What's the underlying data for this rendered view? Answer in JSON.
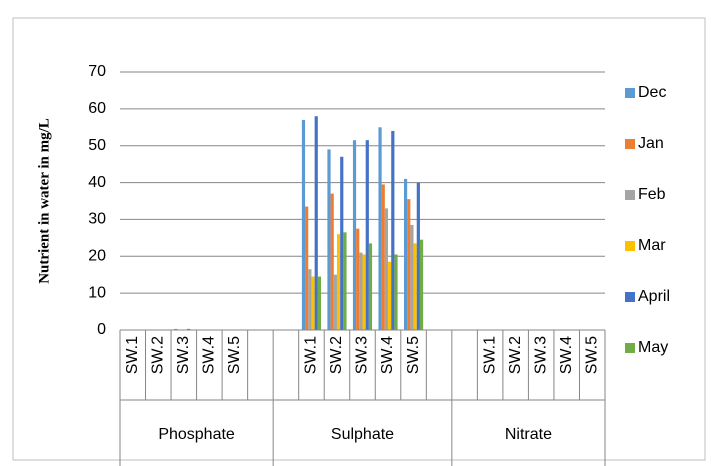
{
  "chart_data": {
    "type": "bar",
    "y_label": "Nutrient in water in mg/L",
    "groups": [
      "Phosphate",
      "Sulphate",
      "Nitrate"
    ],
    "categories": [
      "SW.1",
      "SW.2",
      "SW.3",
      "SW.4",
      "SW.5",
      null,
      null,
      "SW.1",
      "SW.2",
      "SW.3",
      "SW.4",
      "SW.5",
      null,
      null,
      "SW.1",
      "SW.2",
      "SW.3",
      "SW.4",
      "SW.5"
    ],
    "series": [
      {
        "name": "Dec",
        "color": "#5b9bd5",
        "values": [
          0,
          0,
          0.3,
          0,
          0,
          null,
          null,
          57,
          49,
          51.5,
          55,
          41,
          null,
          null,
          0,
          0,
          0,
          0,
          0
        ]
      },
      {
        "name": "Jan",
        "color": "#ed7d31",
        "values": [
          0,
          0,
          0,
          0,
          0,
          null,
          null,
          33.5,
          37,
          27.5,
          39.5,
          35.5,
          null,
          null,
          0,
          0,
          0,
          0,
          0
        ]
      },
      {
        "name": "Feb",
        "color": "#a5a5a5",
        "values": [
          0,
          0,
          0,
          0,
          0,
          null,
          null,
          16.5,
          15,
          21,
          33,
          28.5,
          null,
          null,
          0,
          0,
          0,
          0,
          0
        ]
      },
      {
        "name": "Mar",
        "color": "#ffc000",
        "values": [
          0,
          0,
          0,
          0,
          0,
          null,
          null,
          14.5,
          26,
          20.5,
          18.5,
          23.5,
          null,
          null,
          0,
          0,
          0,
          0,
          0
        ]
      },
      {
        "name": "April",
        "color": "#4472c4",
        "values": [
          0,
          0,
          0.3,
          0,
          0,
          null,
          null,
          58,
          47,
          51.5,
          54,
          40,
          null,
          null,
          0,
          0,
          0,
          0,
          0
        ]
      },
      {
        "name": "May",
        "color": "#70ad47",
        "values": [
          0,
          0,
          0,
          0,
          0,
          null,
          null,
          14.5,
          26.5,
          23.5,
          20.5,
          24.5,
          null,
          null,
          0,
          0,
          0,
          0,
          0
        ]
      }
    ],
    "ylim": [
      0,
      70
    ],
    "yticks": [
      0,
      10,
      20,
      30,
      40,
      50,
      60,
      70
    ],
    "grid": true,
    "legend": "right"
  }
}
